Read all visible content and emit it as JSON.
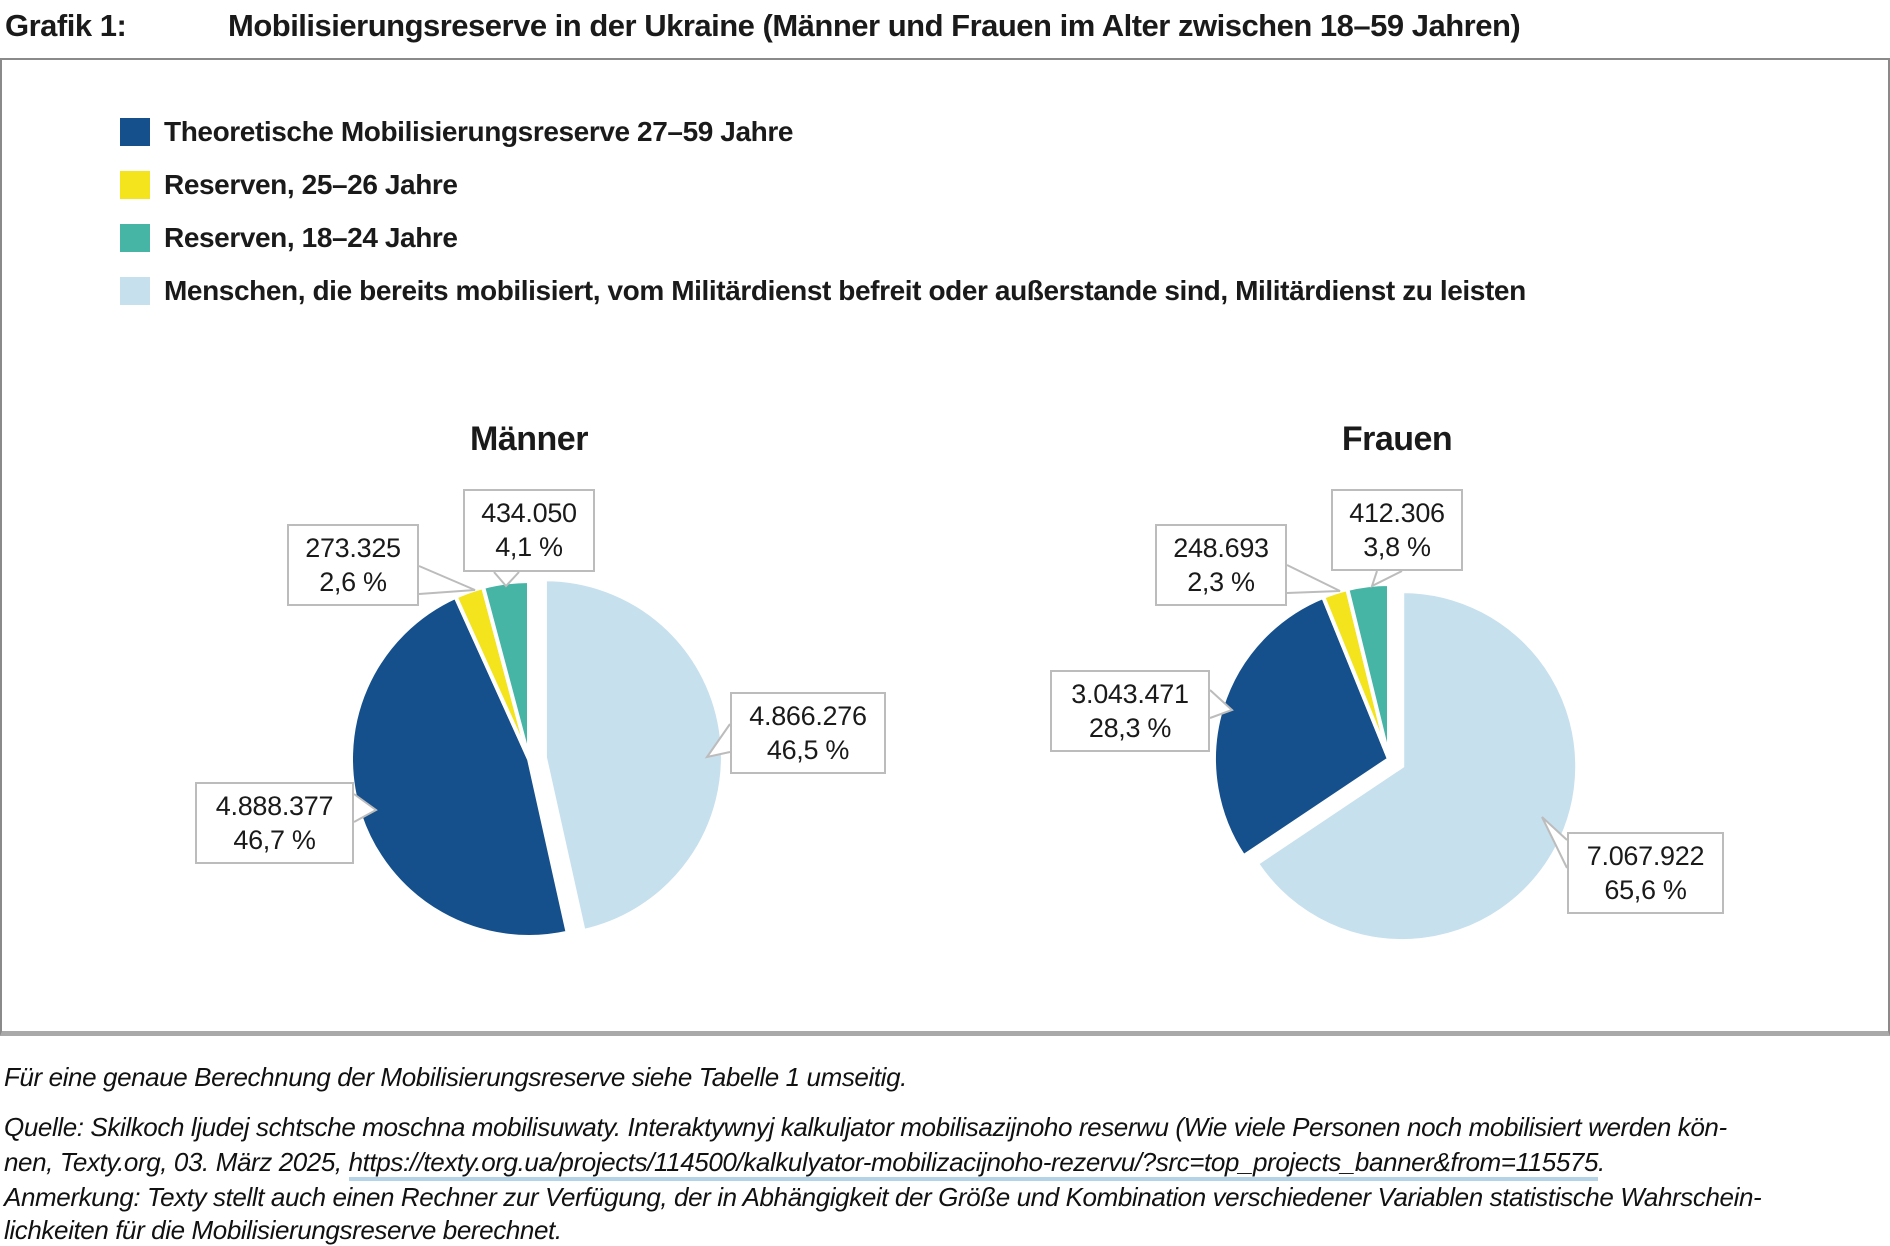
{
  "title": {
    "prefix": "Grafik 1:",
    "text": "Mobilisierungsreserve in der Ukraine (Männer und Frauen im Alter zwischen 18–59 Jahren)"
  },
  "colors": {
    "dark_blue": "#15508C",
    "yellow": "#F3E41E",
    "teal": "#47B5A5",
    "light_blue": "#C6E0EE"
  },
  "legend": {
    "items": [
      {
        "label": "Theoretische Mobilisierungsreserve 27–59 Jahre",
        "color": "#15508C"
      },
      {
        "label": "Reserven, 25–26 Jahre",
        "color": "#F3E41E"
      },
      {
        "label": "Reserven,  18–24 Jahre",
        "color": "#47B5A5"
      },
      {
        "label": "Menschen, die bereits mobilisiert, vom Militärdienst befreit oder außerstande sind, Militärdienst zu leisten",
        "color": "#C6E0EE"
      }
    ]
  },
  "chart_data": [
    {
      "type": "pie",
      "title": "Männer",
      "legend_position": "top-left",
      "slices": [
        {
          "name": "Menschen, die bereits mobilisiert, vom Militärdienst befreit oder außerstande sind, Militärdienst zu leisten",
          "value": 4866276,
          "value_label": "4.866.276",
          "pct": 46.5,
          "pct_label": "46,5 %",
          "color": "#C6E0EE",
          "exploded": true
        },
        {
          "name": "Theoretische Mobilisierungsreserve 27–59 Jahre",
          "value": 4888377,
          "value_label": "4.888.377",
          "pct": 46.7,
          "pct_label": "46,7 %",
          "color": "#15508C",
          "exploded": false
        },
        {
          "name": "Reserven, 25–26 Jahre",
          "value": 273325,
          "value_label": "273.325",
          "pct": 2.6,
          "pct_label": "2,6 %",
          "color": "#F3E41E",
          "exploded": false
        },
        {
          "name": "Reserven, 18–24 Jahre",
          "value": 434050,
          "value_label": "434.050",
          "pct": 4.1,
          "pct_label": "4,1 %",
          "color": "#47B5A5",
          "exploded": false
        }
      ]
    },
    {
      "type": "pie",
      "title": "Frauen",
      "legend_position": "top-left",
      "slices": [
        {
          "name": "Menschen, die bereits mobilisiert, vom Militärdienst befreit oder außerstande sind, Militärdienst zu leisten",
          "value": 7067922,
          "value_label": "7.067.922",
          "pct": 65.6,
          "pct_label": "65,6 %",
          "color": "#C6E0EE",
          "exploded": true
        },
        {
          "name": "Theoretische Mobilisierungsreserve 27–59 Jahre",
          "value": 3043471,
          "value_label": "3.043.471",
          "pct": 28.3,
          "pct_label": "28,3 %",
          "color": "#15508C",
          "exploded": false
        },
        {
          "name": "Reserven, 25–26 Jahre",
          "value": 248693,
          "value_label": "248.693",
          "pct": 2.3,
          "pct_label": "2,3 %",
          "color": "#F3E41E",
          "exploded": false
        },
        {
          "name": "Reserven, 18–24 Jahre",
          "value": 412306,
          "value_label": "412.306",
          "pct": 3.8,
          "pct_label": "3,8 %",
          "color": "#47B5A5",
          "exploded": false
        }
      ]
    }
  ],
  "footnotes": {
    "table_note": "Für eine genaue Berechnung der Mobilisierungsreserve siehe Tabelle 1 umseitig.",
    "source_line1": "Quelle: Skilkoch ljudej schtsche moschna mobilisuwaty. Interaktywnyj kalkuljator mobilisazijnoho reserwu (Wie viele Personen noch mobilisiert werden kön-",
    "source_line2_prefix": "nen, Texty.org, 03. März 2025, ",
    "source_url": "https://texty.org.ua/projects/114500/kalkulyator-mobilizacijnoho-rezervu/?src=top_projects_banner&from=115575",
    "source_line2_suffix": ".",
    "remark_line1": "Anmerkung: Texty stellt auch einen Rechner zur Verfügung, der in Abhängigkeit der Größe und Kombination verschiedener Variablen statistische Wahrschein-",
    "remark_line2": "lichkeiten für die Mobilisierungsreserve berechnet."
  }
}
